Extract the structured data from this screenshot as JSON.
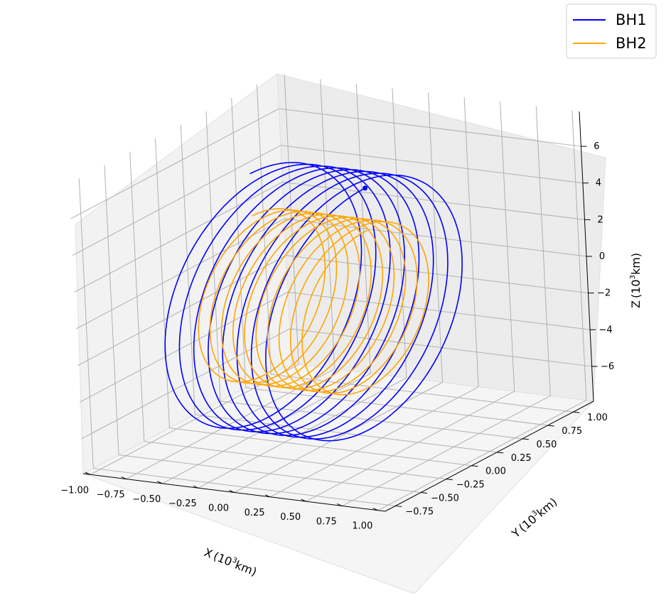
{
  "chart_data": {
    "type": "line",
    "projection": "3d",
    "title": "",
    "xlabel": "X",
    "ylabel": "Y",
    "zlabel": "Z",
    "unit_base": "(10",
    "unit_exp": "3",
    "unit_tail": "km)",
    "x_ticks": [
      "−1.00",
      "−0.75",
      "−0.50",
      "−0.25",
      "0.00",
      "0.25",
      "0.50",
      "0.75",
      "1.00"
    ],
    "y_ticks": [
      "−0.75",
      "−0.50",
      "−0.25",
      "0.00",
      "0.25",
      "0.50",
      "0.75",
      "1.00"
    ],
    "z_ticks": [
      "−6",
      "−4",
      "−2",
      "0",
      "2",
      "4",
      "6"
    ],
    "xlim": [
      -1.05,
      1.05
    ],
    "ylim": [
      -0.85,
      1.2
    ],
    "zlim": [
      -7.9,
      7.9
    ],
    "grid": true,
    "legend_position": "top-right",
    "series": [
      {
        "name": "BH1",
        "color": "#0000ff",
        "turns": 8,
        "radius_z": 6.6,
        "radius_y": 1.0,
        "x_range": [
          -0.4,
          0.4
        ],
        "end_marker": true
      },
      {
        "name": "BH2",
        "color": "#ffa500",
        "turns": 10,
        "radius_z": 4.3,
        "radius_y": 0.65,
        "x_range": [
          -0.4,
          0.4
        ],
        "end_marker": false
      }
    ]
  }
}
